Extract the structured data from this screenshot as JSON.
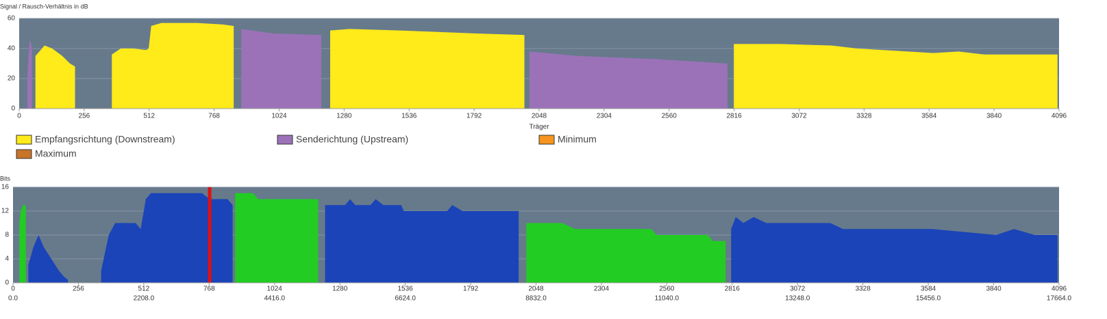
{
  "chart_data": [
    {
      "type": "area",
      "y_label": "Signal / Rausch-Verhältnis in dB",
      "x_label": "Träger",
      "xlim": [
        0,
        4096
      ],
      "ylim": [
        0,
        60
      ],
      "xticks": [
        0,
        256,
        512,
        768,
        1024,
        1280,
        1536,
        1792,
        2048,
        2304,
        2560,
        2816,
        3072,
        3328,
        3584,
        3840,
        4096
      ],
      "yticks": [
        0,
        20,
        40,
        60
      ],
      "grid": true,
      "background": "#667a8c",
      "series": [
        {
          "name": "Empfangsrichtung (Downstream)",
          "color": "#ffea1a",
          "x": [
            64,
            100,
            130,
            170,
            200,
            220,
            null,
            365,
            400,
            450,
            500,
            510,
            520,
            560,
            700,
            800,
            845,
            null,
            1225,
            1300,
            1500,
            1800,
            1990,
            null,
            2815,
            3000,
            3200,
            3300,
            3500,
            3600,
            3700,
            3800,
            4090
          ],
          "values": [
            35,
            42,
            40,
            35,
            30,
            28,
            null,
            36,
            40,
            40,
            39,
            40,
            55,
            57,
            57,
            56,
            55,
            null,
            52,
            53,
            52,
            50,
            49,
            null,
            43,
            43,
            42,
            40,
            38,
            37,
            38,
            36,
            36
          ]
        },
        {
          "name": "Senderichtung (Upstream)",
          "color": "#9b72b8",
          "x": [
            32,
            40,
            45,
            50,
            null,
            875,
            1000,
            1190,
            null,
            2010,
            2200,
            2500,
            2790
          ],
          "values": [
            20,
            44,
            45,
            40,
            null,
            53,
            50,
            49,
            null,
            38,
            35,
            33,
            30
          ]
        },
        {
          "name": "Minimum",
          "color": "#f7941d",
          "x": [],
          "values": []
        },
        {
          "name": "Maximum",
          "color": "#c8742a",
          "x": [],
          "values": []
        }
      ]
    },
    {
      "type": "area",
      "y_label": "Bits",
      "xlim": [
        0,
        4096
      ],
      "ylim": [
        0,
        16
      ],
      "xticks": [
        0,
        256,
        512,
        768,
        1024,
        1280,
        1536,
        1792,
        2048,
        2304,
        2560,
        2816,
        3072,
        3328,
        3584,
        3840,
        4096
      ],
      "yticks": [
        0,
        4,
        8,
        12,
        16
      ],
      "grid": true,
      "background": "#667a8c",
      "freq_ticks": [
        {
          "value": 0,
          "label": "0.0"
        },
        {
          "value": 1024,
          "label": "4416.0"
        },
        {
          "value": 512,
          "label": "2208.0"
        },
        {
          "value": 1536,
          "label": "6624.0"
        },
        {
          "value": 2048,
          "label": "8832.0"
        },
        {
          "value": 2560,
          "label": "11040.0"
        },
        {
          "value": 3072,
          "label": "13248.0"
        },
        {
          "value": 3584,
          "label": "15456.0"
        },
        {
          "value": 4096,
          "label": "17664.0"
        }
      ],
      "series": [
        {
          "color": "#1a44b8",
          "x": [
            60,
            80,
            100,
            120,
            150,
            180,
            200,
            215,
            null,
            345,
            375,
            400,
            480,
            500,
            520,
            540,
            740,
            770,
            840,
            860,
            null,
            1222,
            1300,
            1320,
            1340,
            1400,
            1420,
            1450,
            1520,
            1530,
            1700,
            1720,
            1760,
            1980,
            null,
            2812,
            2830,
            2860,
            2900,
            2950,
            3200,
            3250,
            3600,
            3850,
            3920,
            4000,
            4090
          ],
          "values": [
            3,
            6,
            8,
            6,
            4,
            2,
            1,
            0.5,
            null,
            2,
            8,
            10,
            10,
            9,
            14,
            15,
            15,
            14,
            14,
            13,
            null,
            13,
            13,
            14,
            13,
            13,
            14,
            13,
            13,
            12,
            12,
            13,
            12,
            12,
            null,
            9,
            11,
            10,
            11,
            10,
            10,
            9,
            9,
            8,
            9,
            8,
            8
          ]
        },
        {
          "color": "#22cc22",
          "x": [
            25,
            30,
            40,
            50,
            null,
            870,
            940,
            960,
            1195,
            null,
            2010,
            2150,
            2200,
            2500,
            2520,
            2720,
            2740,
            2790
          ],
          "values": [
            10,
            12,
            13,
            13,
            null,
            15,
            15,
            14,
            14,
            null,
            10,
            10,
            9,
            9,
            8,
            8,
            7,
            7
          ]
        }
      ],
      "markers": [
        {
          "x": 770,
          "color": "#e01010"
        }
      ]
    }
  ]
}
